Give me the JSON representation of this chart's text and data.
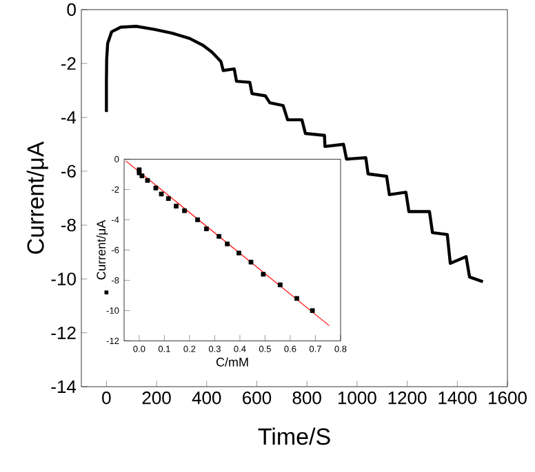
{
  "chart_data": [
    {
      "type": "line",
      "xlabel": "Time/S",
      "ylabel": "Current/μA",
      "xlim": [
        -100,
        1600
      ],
      "ylim": [
        -14,
        0
      ],
      "xticks": [
        0,
        200,
        400,
        600,
        800,
        1000,
        1200,
        1400,
        1600
      ],
      "yticks": [
        -14,
        -12,
        -10,
        -8,
        -6,
        -4,
        -2,
        0
      ],
      "series": [
        {
          "color": "#000000",
          "x": [
            0,
            0,
            1,
            5,
            21,
            57,
            119,
            190,
            261,
            332,
            386,
            421,
            457,
            466,
            510,
            519,
            572,
            581,
            634,
            652,
            705,
            723,
            780,
            794,
            870,
            872,
            946,
            958,
            1035,
            1044,
            1118,
            1129,
            1195,
            1207,
            1289,
            1301,
            1360,
            1372,
            1435,
            1449,
            1502
          ],
          "values": [
            -3.8,
            -2.69,
            -1.84,
            -1.25,
            -0.82,
            -0.65,
            -0.62,
            -0.73,
            -0.87,
            -1.07,
            -1.33,
            -1.58,
            -1.93,
            -2.26,
            -2.2,
            -2.66,
            -2.7,
            -3.12,
            -3.2,
            -3.46,
            -3.56,
            -4.09,
            -4.09,
            -4.6,
            -4.67,
            -5.08,
            -5.0,
            -5.55,
            -5.5,
            -6.1,
            -6.19,
            -6.87,
            -6.78,
            -7.5,
            -7.5,
            -8.28,
            -8.35,
            -9.42,
            -9.17,
            -9.93,
            -10.1
          ]
        },
        {
          "type": "scatter",
          "marker": "square",
          "color": "#000000",
          "x": [
            0
          ],
          "values": [
            -10.5
          ]
        }
      ]
    },
    {
      "type": "scatter",
      "xlabel": "C/mM",
      "ylabel": "Current/μA",
      "xlim": [
        -0.06,
        0.8
      ],
      "ylim": [
        -12,
        0
      ],
      "xticks": [
        {
          "value": 0,
          "label": "0.0"
        },
        0.1,
        0.2,
        0.3,
        0.4,
        0.5,
        0.6,
        0.7,
        0.8
      ],
      "yticks": [
        -12,
        -10,
        -8,
        -6,
        -4,
        -2,
        0
      ],
      "series": [
        {
          "color": "#000000",
          "marker": "square",
          "x": [
            0.0,
            0.0,
            0.011,
            0.033,
            0.066,
            0.088,
            0.116,
            0.147,
            0.18,
            0.232,
            0.267,
            0.317,
            0.35,
            0.396,
            0.444,
            0.493,
            0.56,
            0.626,
            0.688
          ],
          "values": [
            -0.7,
            -0.9,
            -1.1,
            -1.4,
            -1.9,
            -2.3,
            -2.6,
            -3.1,
            -3.4,
            -4.0,
            -4.6,
            -5.1,
            -5.6,
            -6.2,
            -6.8,
            -7.6,
            -8.3,
            -9.2,
            -10.0
          ]
        },
        {
          "type": "line",
          "color": "#ff0000",
          "x": [
            -0.054,
            0.755
          ],
          "values": [
            -0.1,
            -11.0
          ]
        }
      ]
    }
  ]
}
